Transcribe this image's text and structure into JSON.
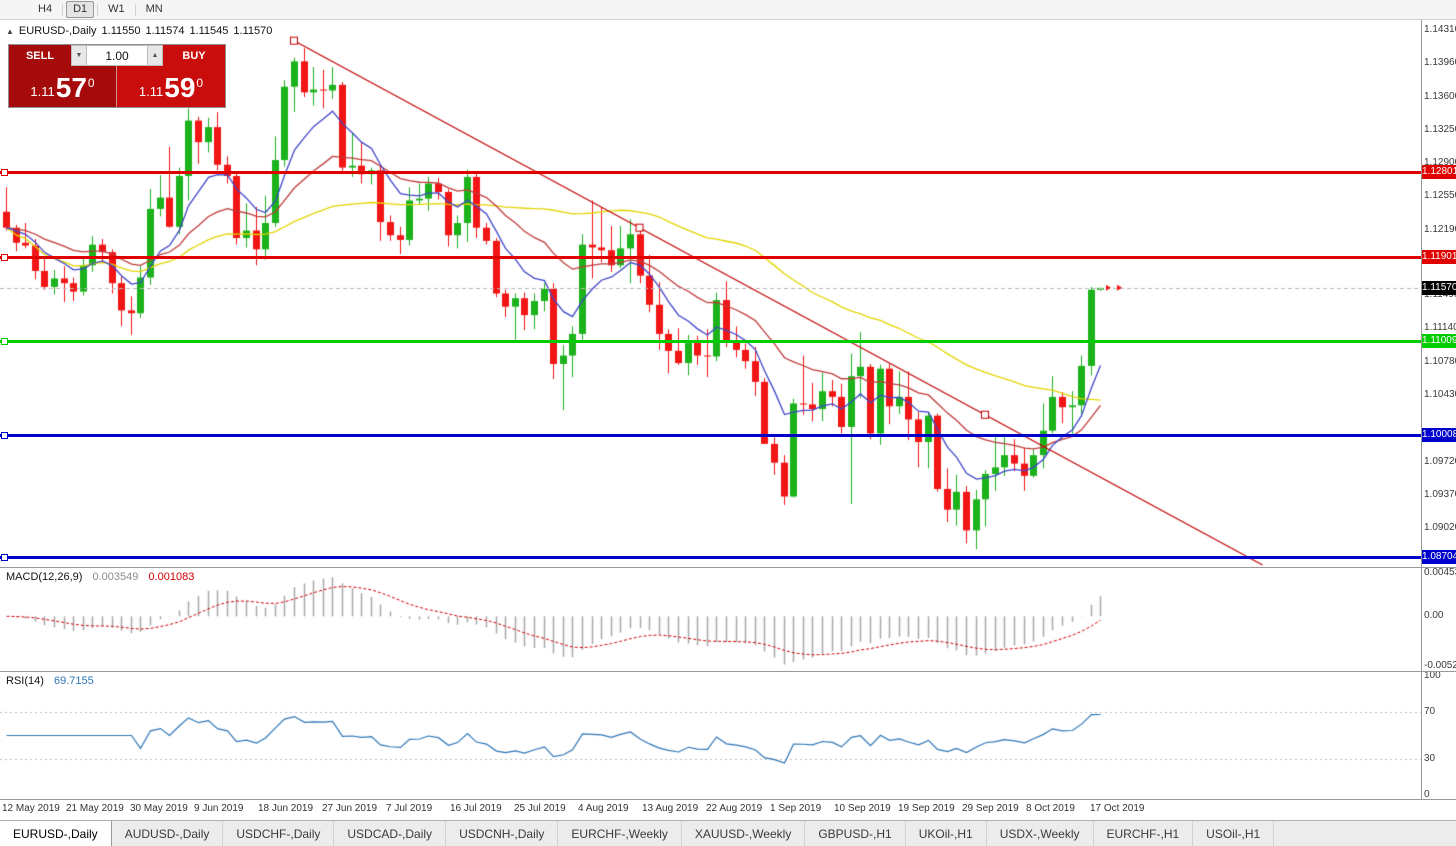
{
  "colors": {
    "up": "#1cb21c",
    "down": "#f21515",
    "trendline": "#c00000",
    "ma_fast": "#3e46c8",
    "ma_mid": "#c03a3a",
    "ma_slow": "#e3d400",
    "macd_hist": "#a8a8a8",
    "macd_signal": "#d00000",
    "rsi_line": "#2e75b6",
    "bid_line": "#b8b8b8"
  },
  "toolbar": {
    "timeframes": [
      {
        "label": "H4",
        "active": false
      },
      {
        "label": "D1",
        "active": true
      },
      {
        "label": "W1",
        "active": false
      },
      {
        "label": "MN",
        "active": false
      }
    ]
  },
  "header": {
    "collapse_icon": "▲",
    "symbol": "EURUSD-,Daily",
    "ohlc": [
      "1.11550",
      "1.11574",
      "1.11545",
      "1.11570"
    ]
  },
  "one_click": {
    "sell_label": "SELL",
    "buy_label": "BUY",
    "volume": "1.00",
    "sell_price": {
      "base": "1.11",
      "pips": "57",
      "point": "0"
    },
    "buy_price": {
      "base": "1.11",
      "pips": "59",
      "point": "0"
    }
  },
  "price_scale": [
    "1.14310",
    "1.13960",
    "1.13600",
    "1.13250",
    "1.12900",
    "1.12550",
    "1.12190",
    "1.11840",
    "1.11490",
    "1.11140",
    "1.10780",
    "1.10430",
    "1.09720",
    "1.09370",
    "1.09020"
  ],
  "levels": [
    {
      "name": "resistance-line-1",
      "label": "1.12801",
      "price": 1.12801,
      "color": "#e00000"
    },
    {
      "name": "resistance-line-2",
      "label": "1.11901",
      "price": 1.11901,
      "color": "#e00000"
    },
    {
      "name": "support-line-green",
      "label": "1.11009",
      "price": 1.11009,
      "color": "#00cc00"
    },
    {
      "name": "support-line-blue-1",
      "label": "1.10008",
      "price": 1.10008,
      "color": "#0000cc"
    },
    {
      "name": "support-line-blue-2",
      "label": "1.08704",
      "price": 1.08704,
      "color": "#0000cc"
    }
  ],
  "bid": {
    "price": 1.1157,
    "label": "1.11570",
    "box_color": "#000000"
  },
  "trendline": {
    "anchors": [
      {
        "bar": 30,
        "price": 1.142
      },
      {
        "bar": 102,
        "price": 1.1022
      }
    ],
    "ray": true
  },
  "chart_data": {
    "type": "candlestick",
    "symbol": "EURUSD",
    "timeframe": "Daily",
    "price_range": {
      "top": 1.1442,
      "bottom": 1.086
    },
    "moving_averages": [
      {
        "type": "ema",
        "period": 8,
        "color": "#3e46c8"
      },
      {
        "type": "ema",
        "period": 21,
        "color": "#c03a3a"
      },
      {
        "type": "sma",
        "period": 50,
        "color": "#e3d400"
      }
    ],
    "indicators": [
      {
        "type": "macd",
        "fast": 12,
        "slow": 26,
        "signal": 9
      },
      {
        "type": "rsi",
        "period": 14
      }
    ],
    "candles": [
      [
        1.1238,
        1.1264,
        1.1218,
        1.1221
      ],
      [
        1.1221,
        1.1224,
        1.1196,
        1.1205
      ],
      [
        1.1205,
        1.1226,
        1.1199,
        1.1202
      ],
      [
        1.1202,
        1.1209,
        1.1166,
        1.1175
      ],
      [
        1.1175,
        1.119,
        1.1155,
        1.1158
      ],
      [
        1.1158,
        1.1176,
        1.115,
        1.1167
      ],
      [
        1.1167,
        1.118,
        1.1142,
        1.1162
      ],
      [
        1.1162,
        1.1168,
        1.1143,
        1.1153
      ],
      [
        1.1153,
        1.1188,
        1.1149,
        1.1181
      ],
      [
        1.1181,
        1.1212,
        1.1174,
        1.1203
      ],
      [
        1.1203,
        1.1209,
        1.1183,
        1.1195
      ],
      [
        1.1195,
        1.1198,
        1.1151,
        1.1162
      ],
      [
        1.1162,
        1.1169,
        1.1116,
        1.1133
      ],
      [
        1.1133,
        1.1148,
        1.1107,
        1.113
      ],
      [
        1.113,
        1.118,
        1.1125,
        1.1168
      ],
      [
        1.1168,
        1.1262,
        1.116,
        1.1241
      ],
      [
        1.1241,
        1.1277,
        1.1233,
        1.1253
      ],
      [
        1.1253,
        1.1307,
        1.1221,
        1.1222
      ],
      [
        1.1222,
        1.1285,
        1.1214,
        1.1276
      ],
      [
        1.1276,
        1.1348,
        1.125,
        1.1335
      ],
      [
        1.1335,
        1.1339,
        1.1289,
        1.1312
      ],
      [
        1.1312,
        1.1338,
        1.1301,
        1.1328
      ],
      [
        1.1328,
        1.1344,
        1.1282,
        1.1288
      ],
      [
        1.1288,
        1.1297,
        1.1268,
        1.1276
      ],
      [
        1.1276,
        1.1279,
        1.1203,
        1.121
      ],
      [
        1.121,
        1.1247,
        1.12,
        1.1218
      ],
      [
        1.1218,
        1.1243,
        1.1181,
        1.1198
      ],
      [
        1.1198,
        1.1255,
        1.1187,
        1.1226
      ],
      [
        1.1226,
        1.1318,
        1.1222,
        1.1293
      ],
      [
        1.1293,
        1.1378,
        1.1286,
        1.1371
      ],
      [
        1.1371,
        1.1402,
        1.1344,
        1.1398
      ],
      [
        1.1398,
        1.1412,
        1.136,
        1.1365
      ],
      [
        1.1365,
        1.1392,
        1.1351,
        1.1368
      ],
      [
        1.1368,
        1.1389,
        1.1348,
        1.1367
      ],
      [
        1.1367,
        1.1392,
        1.1358,
        1.1373
      ],
      [
        1.1373,
        1.1376,
        1.1281,
        1.1285
      ],
      [
        1.1285,
        1.1322,
        1.1275,
        1.1287
      ],
      [
        1.1287,
        1.1312,
        1.1268,
        1.1278
      ],
      [
        1.1278,
        1.1285,
        1.1267,
        1.1282
      ],
      [
        1.1282,
        1.1288,
        1.1207,
        1.1227
      ],
      [
        1.1227,
        1.1234,
        1.1207,
        1.1213
      ],
      [
        1.1213,
        1.1222,
        1.1193,
        1.1208
      ],
      [
        1.1208,
        1.1264,
        1.1202,
        1.125
      ],
      [
        1.125,
        1.1268,
        1.1245,
        1.1252
      ],
      [
        1.1252,
        1.1275,
        1.1239,
        1.1268
      ],
      [
        1.1268,
        1.1274,
        1.1251,
        1.1259
      ],
      [
        1.1259,
        1.1262,
        1.1201,
        1.1213
      ],
      [
        1.1213,
        1.1234,
        1.1199,
        1.1226
      ],
      [
        1.1226,
        1.1283,
        1.1206,
        1.1275
      ],
      [
        1.1275,
        1.1281,
        1.121,
        1.1221
      ],
      [
        1.1221,
        1.1226,
        1.1203,
        1.1207
      ],
      [
        1.1207,
        1.121,
        1.1147,
        1.1151
      ],
      [
        1.1151,
        1.1155,
        1.1126,
        1.1137
      ],
      [
        1.1137,
        1.1151,
        1.1101,
        1.1146
      ],
      [
        1.1146,
        1.1152,
        1.1112,
        1.1128
      ],
      [
        1.1128,
        1.1151,
        1.1113,
        1.1143
      ],
      [
        1.1143,
        1.1162,
        1.1132,
        1.1156
      ],
      [
        1.1156,
        1.1162,
        1.106,
        1.1076
      ],
      [
        1.1076,
        1.1096,
        1.1027,
        1.1085
      ],
      [
        1.1085,
        1.1116,
        1.1062,
        1.1108
      ],
      [
        1.1108,
        1.1214,
        1.1101,
        1.1203
      ],
      [
        1.1203,
        1.125,
        1.1167,
        1.12
      ],
      [
        1.12,
        1.1243,
        1.1184,
        1.1197
      ],
      [
        1.1197,
        1.1223,
        1.1174,
        1.1181
      ],
      [
        1.1181,
        1.1223,
        1.1178,
        1.1199
      ],
      [
        1.1199,
        1.123,
        1.1162,
        1.1214
      ],
      [
        1.1214,
        1.1219,
        1.1162,
        1.117
      ],
      [
        1.117,
        1.1192,
        1.1131,
        1.1139
      ],
      [
        1.1139,
        1.1163,
        1.1091,
        1.1108
      ],
      [
        1.1108,
        1.1113,
        1.1066,
        1.109
      ],
      [
        1.109,
        1.1114,
        1.1075,
        1.1077
      ],
      [
        1.1077,
        1.1107,
        1.1064,
        1.1099
      ],
      [
        1.1099,
        1.1106,
        1.1075,
        1.1085
      ],
      [
        1.1085,
        1.1113,
        1.1062,
        1.1084
      ],
      [
        1.1084,
        1.1152,
        1.1079,
        1.1144
      ],
      [
        1.1144,
        1.1164,
        1.1094,
        1.11
      ],
      [
        1.11,
        1.1116,
        1.1083,
        1.1091
      ],
      [
        1.1091,
        1.1098,
        1.1071,
        1.1079
      ],
      [
        1.1079,
        1.1094,
        1.1042,
        1.1057
      ],
      [
        1.1057,
        1.1061,
        1.0991,
        1.0991
      ],
      [
        1.0991,
        1.0998,
        1.0958,
        1.0971
      ],
      [
        1.0971,
        1.0979,
        1.0926,
        1.0935
      ],
      [
        1.0935,
        1.1039,
        1.0934,
        1.1034
      ],
      [
        1.1034,
        1.1085,
        1.1022,
        1.1033
      ],
      [
        1.1033,
        1.1056,
        1.1015,
        1.1028
      ],
      [
        1.1028,
        1.1067,
        1.1015,
        1.1047
      ],
      [
        1.1047,
        1.1059,
        1.1031,
        1.1041
      ],
      [
        1.1041,
        1.1055,
        1.1002,
        1.1009
      ],
      [
        1.1009,
        1.1087,
        1.0927,
        1.1063
      ],
      [
        1.1063,
        1.111,
        1.104,
        1.1073
      ],
      [
        1.1073,
        1.1076,
        1.0996,
        1.1002
      ],
      [
        1.1002,
        1.1075,
        1.099,
        1.1071
      ],
      [
        1.1071,
        1.1076,
        1.1012,
        1.1031
      ],
      [
        1.1031,
        1.1068,
        1.1023,
        1.1041
      ],
      [
        1.1041,
        1.1068,
        1.0995,
        1.1017
      ],
      [
        1.1017,
        1.1025,
        1.0966,
        1.0993
      ],
      [
        1.0993,
        1.1024,
        1.0965,
        1.1021
      ],
      [
        1.1021,
        1.1023,
        1.094,
        1.0943
      ],
      [
        1.0943,
        1.0965,
        1.0908,
        1.0921
      ],
      [
        1.0921,
        1.0958,
        1.0904,
        1.094
      ],
      [
        1.094,
        1.0946,
        1.0885,
        1.0899
      ],
      [
        1.0899,
        1.0942,
        1.0879,
        1.0932
      ],
      [
        1.0932,
        1.0963,
        1.0903,
        1.0959
      ],
      [
        1.0959,
        1.0999,
        1.0941,
        1.0966
      ],
      [
        1.0966,
        1.0999,
        1.0957,
        1.0979
      ],
      [
        1.0979,
        1.0996,
        1.0962,
        1.097
      ],
      [
        1.097,
        1.0987,
        1.0941,
        1.0957
      ],
      [
        1.0957,
        1.0985,
        1.0955,
        1.0979
      ],
      [
        1.0979,
        1.1034,
        1.0965,
        1.1005
      ],
      [
        1.1005,
        1.1063,
        1.1002,
        1.1041
      ],
      [
        1.1041,
        1.1046,
        1.1013,
        1.103
      ],
      [
        1.103,
        1.1047,
        1.1001,
        1.1032
      ],
      [
        1.1032,
        1.1085,
        1.1023,
        1.1074
      ],
      [
        1.1074,
        1.1158,
        1.1064,
        1.1155
      ],
      [
        1.1155,
        1.1157,
        1.1154,
        1.1157
      ]
    ]
  },
  "macd_panel": {
    "title": "MACD(12,26,9)",
    "main_value": "0.003549",
    "signal_value": "0.001083",
    "scale": [
      "0.00453",
      "0.00",
      "-0.00520"
    ],
    "range": {
      "max": 0.00453,
      "min": -0.0052
    }
  },
  "rsi_panel": {
    "title": "RSI(14)",
    "value": "69.7155",
    "scale": [
      "100",
      "70",
      "30",
      "0"
    ],
    "levels": [
      70,
      30
    ]
  },
  "date_axis": [
    "12 May 2019",
    "21 May 2019",
    "30 May 2019",
    "9 Jun 2019",
    "18 Jun 2019",
    "27 Jun 2019",
    "7 Jul 2019",
    "16 Jul 2019",
    "25 Jul 2019",
    "4 Aug 2019",
    "13 Aug 2019",
    "22 Aug 2019",
    "1 Sep 2019",
    "10 Sep 2019",
    "19 Sep 2019",
    "29 Sep 2019",
    "8 Oct 2019",
    "17 Oct 2019"
  ],
  "tabs": [
    {
      "label": "EURUSD-,Daily",
      "active": true
    },
    {
      "label": "AUDUSD-,Daily",
      "active": false
    },
    {
      "label": "USDCHF-,Daily",
      "active": false
    },
    {
      "label": "USDCAD-,Daily",
      "active": false
    },
    {
      "label": "USDCNH-,Daily",
      "active": false
    },
    {
      "label": "EURCHF-,Weekly",
      "active": false
    },
    {
      "label": "XAUUSD-,Weekly",
      "active": false
    },
    {
      "label": "GBPUSD-,H1",
      "active": false
    },
    {
      "label": "UKOil-,H1",
      "active": false
    },
    {
      "label": "USDX-,Weekly",
      "active": false
    },
    {
      "label": "EURCHF-,H1",
      "active": false
    },
    {
      "label": "USOil-,H1",
      "active": false
    }
  ]
}
